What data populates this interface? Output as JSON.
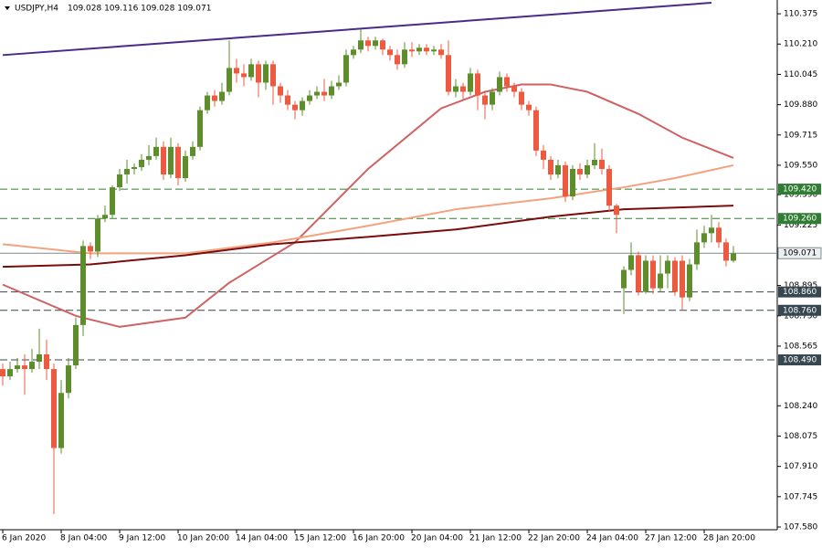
{
  "chart_data": {
    "type": "candlestick",
    "title": "USDJPY,H4",
    "subtitle": "109.028 109.116 109.028 109.071",
    "categories": [
      "6 Jan 2020",
      null,
      null,
      null,
      null,
      null,
      null,
      null,
      "8 Jan 04:00",
      null,
      null,
      null,
      null,
      null,
      null,
      null,
      "9 Jan 12:00",
      null,
      null,
      null,
      null,
      null,
      null,
      null,
      "10 Jan 20:00",
      null,
      null,
      null,
      null,
      null,
      null,
      null,
      "14 Jan 04:00",
      null,
      null,
      null,
      null,
      null,
      null,
      null,
      "15 Jan 12:00",
      null,
      null,
      null,
      null,
      null,
      null,
      null,
      "16 Jan 20:00",
      null,
      null,
      null,
      null,
      null,
      null,
      null,
      "20 Jan 04:00",
      null,
      null,
      null,
      null,
      null,
      null,
      null,
      "21 Jan 12:00",
      null,
      null,
      null,
      null,
      null,
      null,
      null,
      "22 Jan 20:00",
      null,
      null,
      null,
      null,
      null,
      null,
      null,
      "24 Jan 04:00",
      null,
      null,
      null,
      null,
      null,
      null,
      null,
      "27 Jan 12:00",
      null,
      null,
      null,
      null,
      null,
      null,
      null,
      "28 Jan 20:00",
      null,
      null,
      null,
      null
    ],
    "ohlc": [
      [
        108.44,
        108.47,
        108.35,
        108.4
      ],
      [
        108.4,
        108.48,
        108.38,
        108.44
      ],
      [
        108.44,
        108.5,
        108.42,
        108.46
      ],
      [
        108.46,
        108.52,
        108.3,
        108.44
      ],
      [
        108.44,
        108.55,
        108.42,
        108.48
      ],
      [
        108.48,
        108.66,
        108.44,
        108.52
      ],
      [
        108.52,
        108.6,
        108.38,
        108.44
      ],
      [
        108.44,
        108.47,
        107.65,
        108.01
      ],
      [
        108.01,
        108.38,
        107.98,
        108.31
      ],
      [
        108.31,
        108.5,
        108.28,
        108.46
      ],
      [
        108.46,
        108.72,
        108.44,
        108.68
      ],
      [
        108.68,
        109.14,
        108.62,
        109.11
      ],
      [
        109.11,
        109.13,
        109.04,
        109.08
      ],
      [
        109.08,
        109.28,
        109.05,
        109.26
      ],
      [
        109.26,
        109.33,
        109.24,
        109.28
      ],
      [
        109.28,
        109.44,
        109.26,
        109.43
      ],
      [
        109.43,
        109.53,
        109.41,
        109.5
      ],
      [
        109.5,
        109.58,
        109.45,
        109.53
      ],
      [
        109.53,
        109.56,
        109.5,
        109.54
      ],
      [
        109.54,
        109.61,
        109.52,
        109.58
      ],
      [
        109.58,
        109.66,
        109.55,
        109.6
      ],
      [
        109.6,
        109.7,
        109.58,
        109.65
      ],
      [
        109.65,
        109.68,
        109.47,
        109.5
      ],
      [
        109.5,
        109.7,
        109.48,
        109.65
      ],
      [
        109.65,
        109.67,
        109.44,
        109.48
      ],
      [
        109.48,
        109.63,
        109.46,
        109.6
      ],
      [
        109.6,
        109.68,
        109.58,
        109.65
      ],
      [
        109.65,
        109.87,
        109.63,
        109.85
      ],
      [
        109.85,
        109.95,
        109.83,
        109.93
      ],
      [
        109.93,
        109.96,
        109.87,
        109.9
      ],
      [
        109.9,
        110.0,
        109.88,
        109.95
      ],
      [
        109.95,
        110.23,
        109.93,
        110.08
      ],
      [
        110.08,
        110.13,
        110.0,
        110.05
      ],
      [
        110.05,
        110.1,
        109.98,
        110.03
      ],
      [
        110.03,
        110.13,
        110.01,
        110.1
      ],
      [
        110.1,
        110.12,
        109.92,
        110.0
      ],
      [
        110.0,
        110.12,
        109.96,
        110.1
      ],
      [
        110.1,
        110.12,
        109.88,
        109.98
      ],
      [
        109.98,
        110.0,
        109.89,
        109.93
      ],
      [
        109.93,
        109.96,
        109.85,
        109.88
      ],
      [
        109.88,
        109.9,
        109.8,
        109.85
      ],
      [
        109.85,
        109.92,
        109.82,
        109.9
      ],
      [
        109.9,
        109.96,
        109.88,
        109.93
      ],
      [
        109.93,
        109.98,
        109.91,
        109.95
      ],
      [
        109.95,
        110.02,
        109.9,
        109.93
      ],
      [
        109.93,
        110.01,
        109.91,
        109.98
      ],
      [
        109.98,
        110.04,
        109.96,
        110.0
      ],
      [
        110.0,
        110.18,
        109.98,
        110.15
      ],
      [
        110.15,
        110.2,
        110.13,
        110.18
      ],
      [
        110.18,
        110.29,
        110.16,
        110.23
      ],
      [
        110.23,
        110.25,
        110.17,
        110.2
      ],
      [
        110.2,
        110.25,
        110.18,
        110.23
      ],
      [
        110.23,
        110.24,
        110.15,
        110.18
      ],
      [
        110.18,
        110.2,
        110.12,
        110.15
      ],
      [
        110.15,
        110.18,
        110.07,
        110.1
      ],
      [
        110.1,
        110.22,
        110.08,
        110.18
      ],
      [
        110.18,
        110.22,
        110.14,
        110.17
      ],
      [
        110.17,
        110.21,
        110.15,
        110.19
      ],
      [
        110.19,
        110.21,
        110.15,
        110.17
      ],
      [
        110.17,
        110.2,
        110.15,
        110.18
      ],
      [
        110.18,
        110.21,
        110.13,
        110.15
      ],
      [
        110.15,
        110.23,
        109.93,
        109.95
      ],
      [
        109.95,
        110.02,
        109.92,
        109.98
      ],
      [
        109.98,
        110.0,
        109.91,
        109.95
      ],
      [
        109.95,
        110.08,
        109.93,
        110.05
      ],
      [
        110.05,
        110.07,
        109.85,
        109.93
      ],
      [
        109.93,
        109.95,
        109.8,
        109.88
      ],
      [
        109.88,
        109.97,
        109.85,
        109.95
      ],
      [
        109.95,
        110.06,
        109.93,
        110.03
      ],
      [
        110.03,
        110.05,
        109.95,
        109.98
      ],
      [
        109.98,
        110.0,
        109.92,
        109.95
      ],
      [
        109.95,
        109.97,
        109.85,
        109.88
      ],
      [
        109.88,
        109.9,
        109.82,
        109.85
      ],
      [
        109.85,
        109.87,
        109.6,
        109.63
      ],
      [
        109.63,
        109.66,
        109.53,
        109.58
      ],
      [
        109.58,
        109.6,
        109.47,
        109.5
      ],
      [
        109.5,
        109.58,
        109.48,
        109.55
      ],
      [
        109.55,
        109.57,
        109.35,
        109.38
      ],
      [
        109.38,
        109.55,
        109.36,
        109.53
      ],
      [
        109.53,
        109.56,
        109.47,
        109.5
      ],
      [
        109.5,
        109.58,
        109.48,
        109.55
      ],
      [
        109.55,
        109.67,
        109.53,
        109.58
      ],
      [
        109.58,
        109.64,
        109.5,
        109.53
      ],
      [
        109.53,
        109.55,
        109.3,
        109.33
      ],
      [
        109.33,
        109.34,
        109.18,
        109.28
      ],
      [
        108.88,
        109.0,
        108.74,
        108.98
      ],
      [
        108.98,
        109.13,
        108.95,
        109.06
      ],
      [
        109.06,
        109.08,
        108.84,
        108.86
      ],
      [
        108.86,
        109.06,
        108.85,
        109.03
      ],
      [
        109.03,
        109.06,
        108.85,
        108.88
      ],
      [
        108.88,
        109.06,
        108.86,
        108.96
      ],
      [
        108.96,
        109.06,
        108.88,
        109.03
      ],
      [
        109.03,
        109.05,
        108.84,
        108.86
      ],
      [
        109.03,
        109.06,
        108.76,
        108.83
      ],
      [
        108.83,
        109.04,
        108.81,
        109.01
      ],
      [
        109.01,
        109.2,
        108.98,
        109.13
      ],
      [
        109.13,
        109.22,
        109.1,
        109.18
      ],
      [
        109.18,
        109.28,
        109.13,
        109.21
      ],
      [
        109.21,
        109.24,
        109.1,
        109.13
      ],
      [
        109.13,
        109.15,
        109.0,
        109.03
      ],
      [
        109.03,
        109.11,
        109.02,
        109.07
      ]
    ],
    "bull_color": "#5e8e2c",
    "bear_color": "#ec5a3f",
    "lines": [
      {
        "color": "#cf6262",
        "x": [
          0,
          10,
          16,
          25,
          31,
          40,
          50,
          60,
          66,
          71,
          75,
          80,
          87,
          93,
          100
        ],
        "values": [
          108.9,
          108.73,
          108.67,
          108.72,
          108.91,
          109.13,
          109.53,
          109.86,
          109.95,
          109.99,
          109.99,
          109.95,
          109.83,
          109.7,
          109.59
        ]
      },
      {
        "color": "#f4a27e",
        "x": [
          0,
          12,
          25,
          37,
          50,
          62,
          75,
          85,
          92,
          100
        ],
        "values": [
          109.12,
          109.07,
          109.07,
          109.13,
          109.22,
          109.31,
          109.37,
          109.43,
          109.48,
          109.55
        ]
      },
      {
        "color": "#7a0c0c",
        "x": [
          0,
          12,
          25,
          37,
          50,
          62,
          75,
          85,
          100
        ],
        "values": [
          108.997,
          109.01,
          109.06,
          109.12,
          109.16,
          109.2,
          109.27,
          109.31,
          109.33
        ]
      },
      {
        "color": "#4b2a8c",
        "x": [
          0,
          97
        ],
        "values": [
          110.15,
          110.435
        ]
      }
    ],
    "levels": [
      {
        "value": 109.42,
        "label": "109.420",
        "color": "#2e7d32"
      },
      {
        "value": 109.26,
        "label": "109.260",
        "color": "#2e7d32"
      },
      {
        "value": 108.86,
        "label": "108.860",
        "color": "#37474f"
      },
      {
        "value": 108.76,
        "label": "108.760",
        "color": "#37474f"
      },
      {
        "value": 108.49,
        "label": "108.490",
        "color": "#37474f"
      }
    ],
    "current_price": 109.071,
    "ylim": [
      107.565,
      110.45
    ],
    "yticks": [
      110.375,
      {
        "value": 110.21,
        "label": "110.210"
      },
      110.045,
      {
        "value": 109.88,
        "label": "109.880"
      },
      109.715,
      {
        "value": 109.55,
        "label": "109.550"
      },
      {
        "value": 109.39,
        "label": "109.390"
      },
      109.225,
      108.895,
      {
        "value": 108.73,
        "label": "108.730"
      },
      108.565,
      {
        "value": 108.24,
        "label": "108.240"
      },
      108.075,
      {
        "value": 107.91,
        "label": "107.910"
      },
      107.745,
      {
        "value": 107.58,
        "label": "107.580"
      }
    ],
    "grid": false
  }
}
